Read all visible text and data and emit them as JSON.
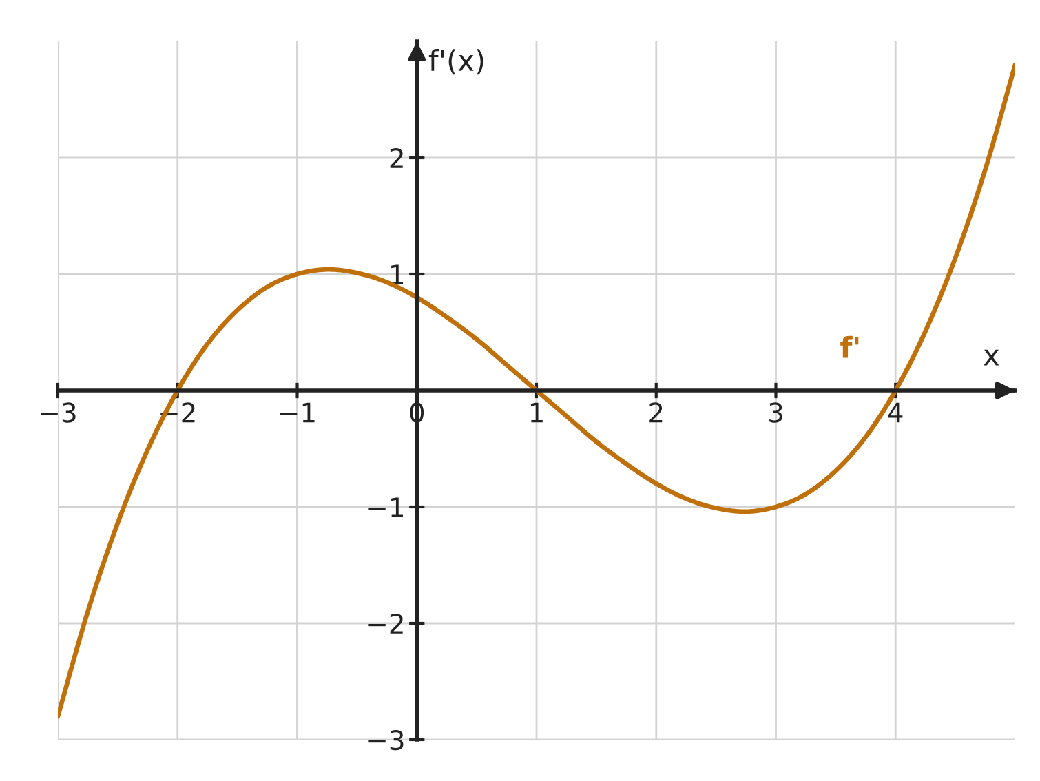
{
  "chart_data": {
    "type": "line",
    "xlabel": "x",
    "ylabel": "f'(x)",
    "xlim": [
      -3,
      5
    ],
    "ylim": [
      -3,
      3
    ],
    "xticks": [
      -3,
      -2,
      -1,
      0,
      1,
      2,
      3,
      4
    ],
    "yticks": [
      -3,
      -2,
      -1,
      1,
      2
    ],
    "grid": true,
    "series": [
      {
        "name": "f'",
        "color": "#c0700a",
        "x": [
          -3,
          -2.75,
          -2.5,
          -2.25,
          -2,
          -1.75,
          -1.5,
          -1.25,
          -1,
          -0.75,
          -0.5,
          -0.25,
          0,
          0.25,
          0.5,
          0.75,
          1,
          1.25,
          1.5,
          1.75,
          2,
          2.25,
          2.5,
          2.75,
          3,
          3.25,
          3.5,
          3.75,
          4,
          4.25,
          4.5,
          4.75,
          5
        ],
        "values": [
          -2.8,
          -1.9,
          -1.14,
          -0.51,
          0,
          0.4,
          0.69,
          0.89,
          1.0,
          1.04,
          1.01,
          0.93,
          0.8,
          0.63,
          0.44,
          0.22,
          0,
          -0.22,
          -0.44,
          -0.63,
          -0.8,
          -0.93,
          -1.01,
          -1.04,
          -1.0,
          -0.89,
          -0.69,
          -0.4,
          0,
          0.51,
          1.14,
          1.9,
          2.8
        ]
      }
    ]
  }
}
